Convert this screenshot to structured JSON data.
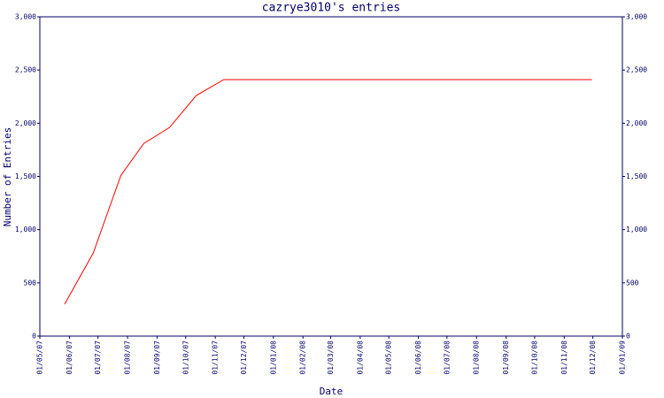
{
  "chart_data": {
    "type": "line",
    "title": "cazrye3010's entries",
    "x_label": "Date",
    "y_label": "Number of Entries",
    "x": [
      "27/05/07",
      "26/06/07",
      "25/07/07",
      "18/08/07",
      "14/09/07",
      "12/10/07",
      "10/11/07",
      "30/11/08"
    ],
    "series": [
      {
        "name": "entries",
        "color": "#ff0000",
        "values": [
          300,
          780,
          1510,
          1810,
          1960,
          2260,
          2410,
          2410
        ]
      }
    ],
    "xlim": [
      "01/05/07",
      "01/01/09"
    ],
    "xticks": [
      "01/05/07",
      "01/06/07",
      "01/07/07",
      "01/08/07",
      "01/09/07",
      "01/10/07",
      "01/11/07",
      "01/12/07",
      "01/01/08",
      "01/02/08",
      "01/03/08",
      "01/04/08",
      "01/05/08",
      "01/06/08",
      "01/07/08",
      "01/08/08",
      "01/09/08",
      "01/10/08",
      "01/11/08",
      "01/12/08",
      "01/01/09"
    ],
    "ylim": [
      0,
      3000
    ],
    "yticks": [
      0,
      500,
      {
        "value": 1000,
        "label": "1,000"
      },
      {
        "value": 1500,
        "label": "1,500"
      },
      {
        "value": 2000,
        "label": "2,000"
      },
      {
        "value": 2500,
        "label": "2,500"
      },
      {
        "value": 3000,
        "label": "3,000"
      }
    ],
    "axis_color": "#000066"
  }
}
